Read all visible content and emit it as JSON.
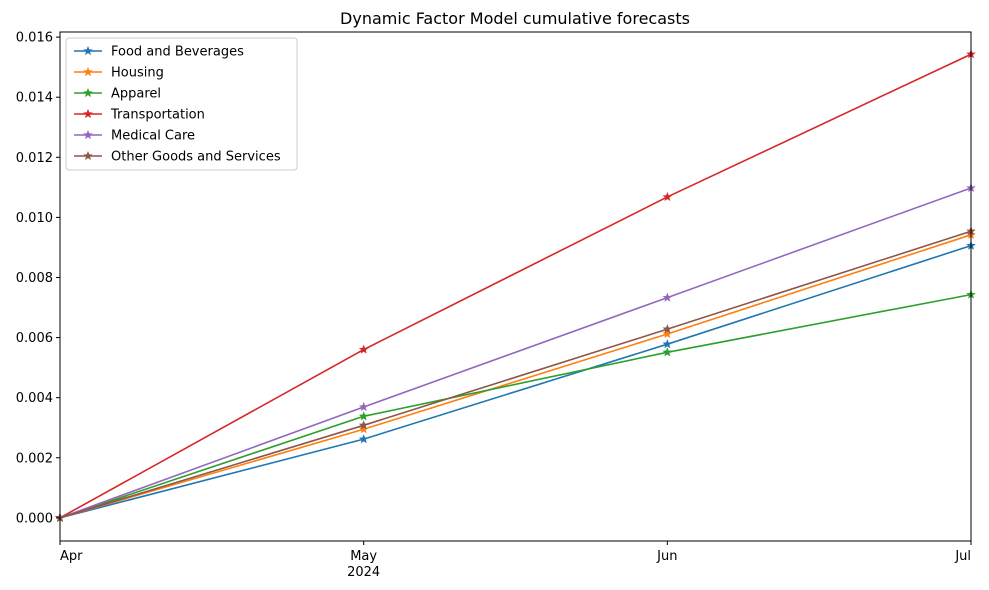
{
  "chart_data": {
    "type": "line",
    "title": "Dynamic Factor Model cumulative forecasts",
    "xlabel": "",
    "ylabel": "",
    "categories": [
      "Apr",
      "May",
      "Jun",
      "Jul"
    ],
    "category_sublabels": [
      "",
      "2024",
      "",
      ""
    ],
    "ylim": [
      -0.00077,
      0.01617
    ],
    "yticks": [
      0.0,
      0.002,
      0.004,
      0.006,
      0.008,
      0.01,
      0.012,
      0.014,
      0.016
    ],
    "ytick_labels": [
      "0.000",
      "0.002",
      "0.004",
      "0.006",
      "0.008",
      "0.010",
      "0.012",
      "0.014",
      "0.016"
    ],
    "grid": false,
    "legend_position": "top-left",
    "marker": "star",
    "series": [
      {
        "name": "Food and Beverages",
        "color": "#1f77b4",
        "values": [
          0.0,
          0.00262,
          0.00578,
          0.00906
        ]
      },
      {
        "name": "Housing",
        "color": "#ff7f0e",
        "values": [
          0.0,
          0.00295,
          0.00612,
          0.00942
        ]
      },
      {
        "name": "Apparel",
        "color": "#2ca02c",
        "values": [
          0.0,
          0.00338,
          0.00551,
          0.00743
        ]
      },
      {
        "name": "Transportation",
        "color": "#d62728",
        "values": [
          0.0,
          0.0056,
          0.01068,
          0.01543
        ]
      },
      {
        "name": "Medical Care",
        "color": "#9467bd",
        "values": [
          0.0,
          0.00369,
          0.00733,
          0.01098
        ]
      },
      {
        "name": "Other Goods and Services",
        "color": "#8c564b",
        "values": [
          0.0,
          0.00308,
          0.00628,
          0.00954
        ]
      }
    ]
  }
}
